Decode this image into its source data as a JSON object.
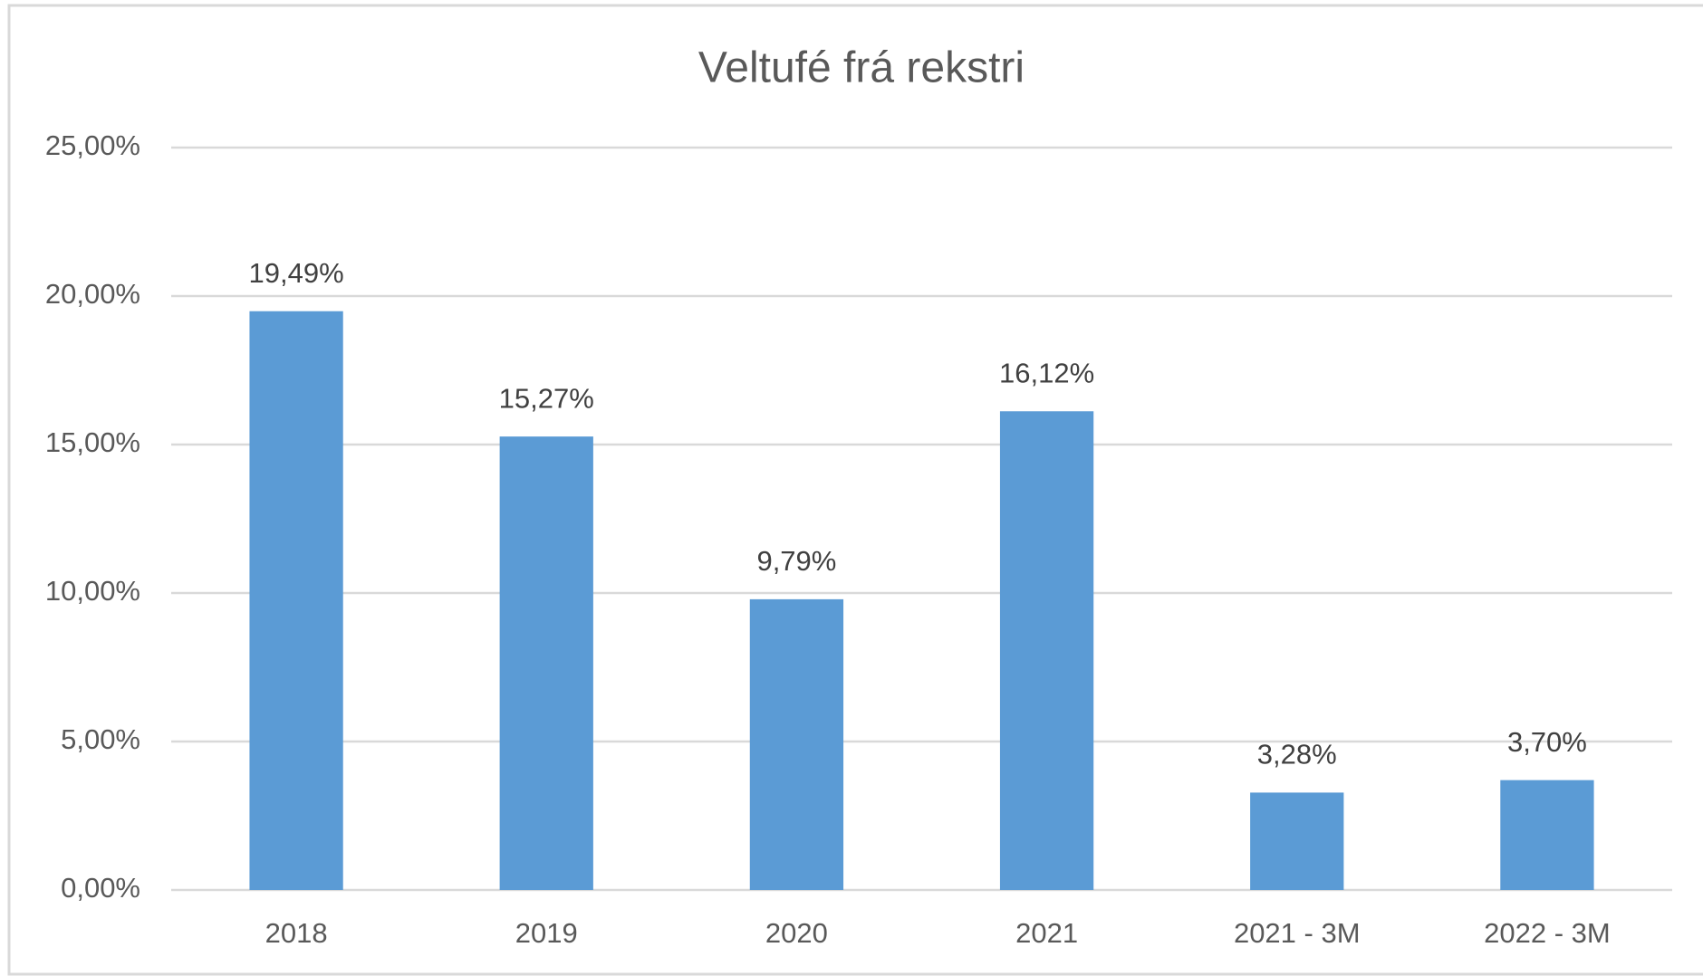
{
  "chart_data": {
    "type": "bar",
    "title": "Veltufé frá rekstri",
    "categories": [
      "2018",
      "2019",
      "2020",
      "2021",
      "2021 - 3M",
      "2022 - 3M"
    ],
    "values": [
      19.49,
      15.27,
      9.79,
      16.12,
      3.28,
      3.7
    ],
    "value_labels": [
      "19,49%",
      "15,27%",
      "9,79%",
      "16,12%",
      "3,28%",
      "3,70%"
    ],
    "color": "#5b9bd5",
    "ylim": [
      0,
      25
    ],
    "yticks": [
      {
        "value": 0,
        "label": "0,00%"
      },
      {
        "value": 5,
        "label": "5,00%"
      },
      {
        "value": 10,
        "label": "10,00%"
      },
      {
        "value": 15,
        "label": "15,00%"
      },
      {
        "value": 20,
        "label": "20,00%"
      },
      {
        "value": 25,
        "label": "25,00%"
      }
    ],
    "grid": true
  }
}
